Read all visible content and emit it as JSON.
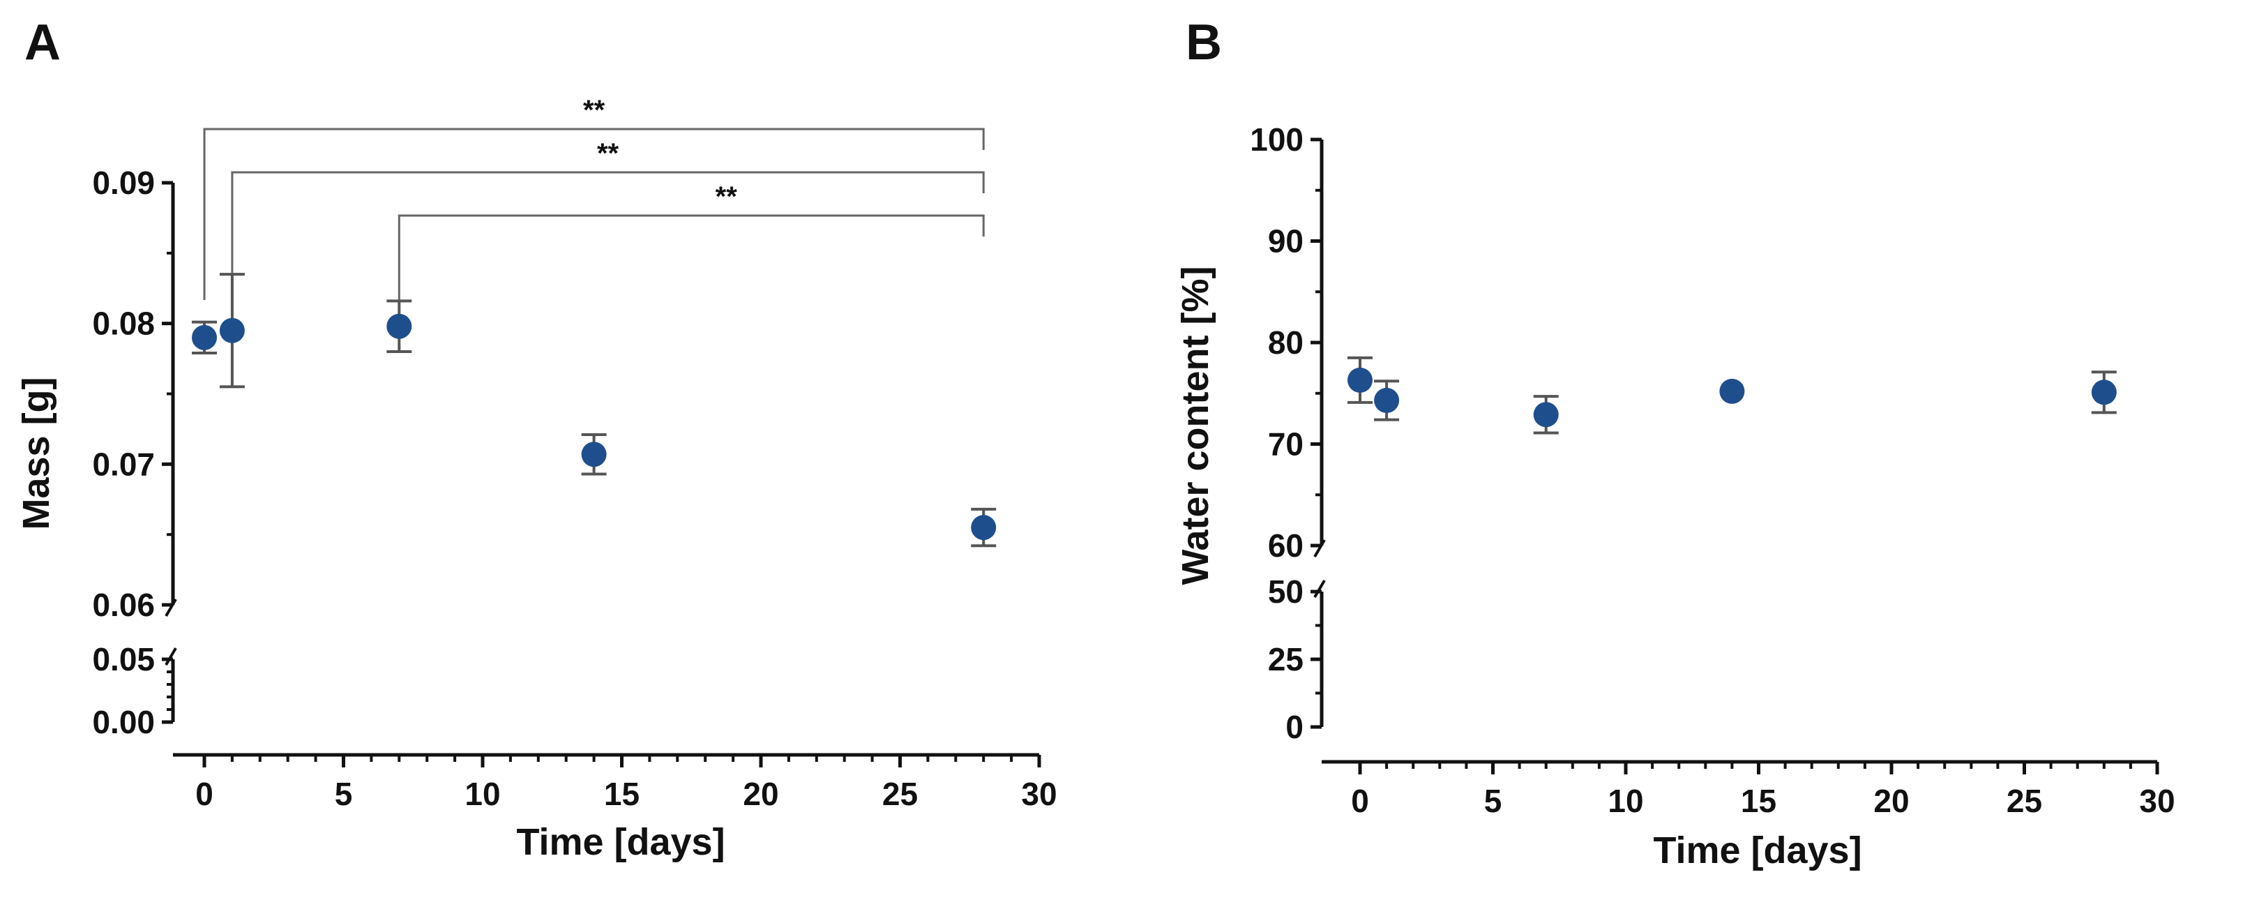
{
  "colors": {
    "marker": "#1f4e8c",
    "axis": "#111111",
    "errorbar": "#555555",
    "bracket": "#666666"
  },
  "chart_data": [
    {
      "panel_label": "A",
      "type": "scatter",
      "xlabel": "Time [days]",
      "ylabel": "Mass [g]",
      "xlim": [
        0,
        30
      ],
      "x_ticks": [
        0,
        5,
        10,
        15,
        20,
        25,
        30
      ],
      "x_tick_labels": [
        "0",
        "5",
        "10",
        "15",
        "20",
        "25",
        "30"
      ],
      "y_segments": [
        {
          "range": [
            0.0,
            0.05
          ],
          "ticks": [
            0.0,
            0.05
          ],
          "tick_labels": [
            "0.00",
            "0.05"
          ]
        },
        {
          "range": [
            0.06,
            0.09
          ],
          "ticks": [
            0.06,
            0.07,
            0.08,
            0.09
          ],
          "tick_labels": [
            "0.06",
            "0.07",
            "0.08",
            "0.09"
          ]
        }
      ],
      "points": [
        {
          "x": 0,
          "y": 0.079,
          "err": 0.0011
        },
        {
          "x": 1,
          "y": 0.0795,
          "err": 0.004
        },
        {
          "x": 7,
          "y": 0.0798,
          "err": 0.0018
        },
        {
          "x": 14,
          "y": 0.0707,
          "err": 0.0014
        },
        {
          "x": 28,
          "y": 0.0655,
          "err": 0.0013
        }
      ],
      "significance": [
        {
          "from": 0,
          "to": 28,
          "label": "**"
        },
        {
          "from": 1,
          "to": 28,
          "label": "**"
        },
        {
          "from": 7,
          "to": 28,
          "label": "**"
        }
      ]
    },
    {
      "panel_label": "B",
      "type": "scatter",
      "xlabel": "Time [days]",
      "ylabel": "Water content [%]",
      "xlim": [
        0,
        30
      ],
      "x_ticks": [
        0,
        5,
        10,
        15,
        20,
        25,
        30
      ],
      "x_tick_labels": [
        "0",
        "5",
        "10",
        "15",
        "20",
        "25",
        "30"
      ],
      "y_segments": [
        {
          "range": [
            0,
            50
          ],
          "ticks": [
            0,
            25,
            50
          ],
          "tick_labels": [
            "0",
            "25",
            "50"
          ]
        },
        {
          "range": [
            60,
            100
          ],
          "ticks": [
            60,
            70,
            80,
            90,
            100
          ],
          "tick_labels": [
            "60",
            "70",
            "80",
            "90",
            "100"
          ]
        }
      ],
      "points": [
        {
          "x": 0,
          "y": 76.3,
          "err": 2.2
        },
        {
          "x": 1,
          "y": 74.3,
          "err": 1.9
        },
        {
          "x": 7,
          "y": 72.9,
          "err": 1.8
        },
        {
          "x": 14,
          "y": 75.2,
          "err": 0.0
        },
        {
          "x": 28,
          "y": 75.1,
          "err": 2.0
        }
      ],
      "significance": []
    }
  ]
}
